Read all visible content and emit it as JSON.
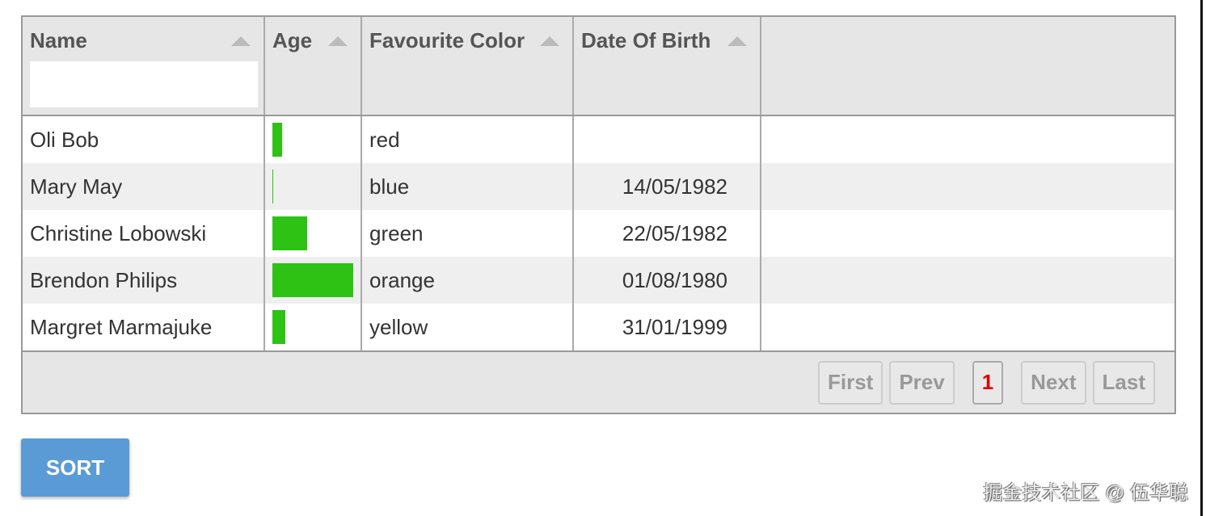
{
  "columns": [
    {
      "title": "Name",
      "sortable": true,
      "filter_value": ""
    },
    {
      "title": "Age",
      "sortable": true
    },
    {
      "title": "Favourite Color",
      "sortable": true
    },
    {
      "title": "Date Of Birth",
      "sortable": true
    }
  ],
  "rows": [
    {
      "name": "Oli Bob",
      "age_progress": 12,
      "color": "red",
      "dob": ""
    },
    {
      "name": "Mary May",
      "age_progress": 1,
      "color": "blue",
      "dob": "14/05/1982"
    },
    {
      "name": "Christine Lobowski",
      "age_progress": 42,
      "color": "green",
      "dob": "22/05/1982"
    },
    {
      "name": "Brendon Philips",
      "age_progress": 100,
      "color": "orange",
      "dob": "01/08/1980"
    },
    {
      "name": "Margret Marmajuke",
      "age_progress": 16,
      "color": "yellow",
      "dob": "31/01/1999"
    }
  ],
  "pagination": {
    "first": "First",
    "prev": "Prev",
    "current": "1",
    "next": "Next",
    "last": "Last"
  },
  "sort_button": "SORT",
  "watermark": "掘金技术社区 @ 伍华聪",
  "colors": {
    "progress": "#2dc214",
    "button": "#5b9bd5",
    "active_page": "#dd0000"
  }
}
